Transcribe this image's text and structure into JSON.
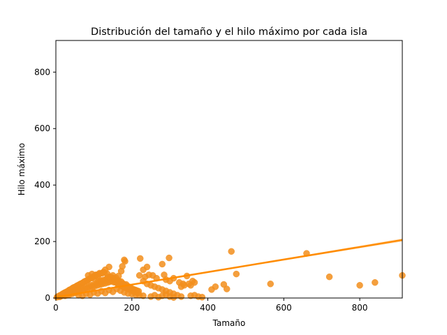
{
  "chart_data": {
    "type": "scatter",
    "title": "Distribución del tamaño y el hilo máximo por cada isla",
    "xlabel": "Tamaño",
    "ylabel": "Hilo máximo",
    "xlim": [
      0,
      912
    ],
    "ylim": [
      0,
      912
    ],
    "x_ticks": [
      0,
      200,
      400,
      600,
      800
    ],
    "y_ticks": [
      0,
      200,
      400,
      600,
      800
    ],
    "grid": false,
    "legend": "none",
    "colors": {
      "points": "#f28e1c",
      "regression": "#ff8c00",
      "confidence_band": "#ffd7a8"
    },
    "regression": {
      "intercept": 3,
      "slope": 0.222,
      "ci_halfwidth_at_max": 6
    },
    "points": [
      [
        3,
        3
      ],
      [
        5,
        5
      ],
      [
        7,
        6
      ],
      [
        9,
        8
      ],
      [
        10,
        4
      ],
      [
        12,
        10
      ],
      [
        14,
        7
      ],
      [
        15,
        12
      ],
      [
        17,
        9
      ],
      [
        18,
        15
      ],
      [
        20,
        11
      ],
      [
        22,
        18
      ],
      [
        24,
        8
      ],
      [
        25,
        20
      ],
      [
        27,
        14
      ],
      [
        28,
        22
      ],
      [
        30,
        10
      ],
      [
        32,
        25
      ],
      [
        33,
        17
      ],
      [
        35,
        28
      ],
      [
        36,
        12
      ],
      [
        38,
        30
      ],
      [
        40,
        20
      ],
      [
        42,
        33
      ],
      [
        43,
        15
      ],
      [
        45,
        36
      ],
      [
        47,
        24
      ],
      [
        48,
        38
      ],
      [
        50,
        18
      ],
      [
        52,
        40
      ],
      [
        53,
        27
      ],
      [
        55,
        43
      ],
      [
        57,
        21
      ],
      [
        58,
        45
      ],
      [
        60,
        30
      ],
      [
        62,
        48
      ],
      [
        63,
        24
      ],
      [
        65,
        50
      ],
      [
        67,
        33
      ],
      [
        68,
        52
      ],
      [
        70,
        27
      ],
      [
        72,
        55
      ],
      [
        73,
        36
      ],
      [
        75,
        58
      ],
      [
        77,
        30
      ],
      [
        78,
        60
      ],
      [
        80,
        39
      ],
      [
        82,
        62
      ],
      [
        83,
        33
      ],
      [
        85,
        65
      ],
      [
        87,
        42
      ],
      [
        88,
        68
      ],
      [
        90,
        36
      ],
      [
        92,
        70
      ],
      [
        93,
        45
      ],
      [
        95,
        72
      ],
      [
        97,
        39
      ],
      [
        98,
        75
      ],
      [
        100,
        48
      ],
      [
        102,
        78
      ],
      [
        103,
        42
      ],
      [
        105,
        80
      ],
      [
        107,
        51
      ],
      [
        108,
        82
      ],
      [
        110,
        45
      ],
      [
        112,
        60
      ],
      [
        113,
        54
      ],
      [
        115,
        85
      ],
      [
        117,
        48
      ],
      [
        118,
        62
      ],
      [
        120,
        57
      ],
      [
        122,
        88
      ],
      [
        123,
        50
      ],
      [
        125,
        64
      ],
      [
        127,
        60
      ],
      [
        128,
        90
      ],
      [
        130,
        52
      ],
      [
        132,
        66
      ],
      [
        133,
        62
      ],
      [
        135,
        70
      ],
      [
        137,
        55
      ],
      [
        138,
        68
      ],
      [
        140,
        64
      ],
      [
        142,
        72
      ],
      [
        143,
        58
      ],
      [
        145,
        74
      ],
      [
        147,
        66
      ],
      [
        148,
        62
      ],
      [
        150,
        60
      ],
      [
        152,
        70
      ],
      [
        153,
        56
      ],
      [
        155,
        65
      ],
      [
        157,
        58
      ],
      [
        158,
        72
      ],
      [
        160,
        54
      ],
      [
        162,
        60
      ],
      [
        163,
        50
      ],
      [
        165,
        62
      ],
      [
        167,
        48
      ],
      [
        168,
        56
      ],
      [
        170,
        45
      ],
      [
        172,
        58
      ],
      [
        173,
        42
      ],
      [
        175,
        52
      ],
      [
        177,
        40
      ],
      [
        178,
        50
      ],
      [
        180,
        38
      ],
      [
        182,
        45
      ],
      [
        183,
        36
      ],
      [
        185,
        48
      ],
      [
        187,
        34
      ],
      [
        188,
        42
      ],
      [
        190,
        32
      ],
      [
        192,
        40
      ],
      [
        193,
        30
      ],
      [
        195,
        38
      ],
      [
        197,
        28
      ],
      [
        198,
        35
      ],
      [
        200,
        26
      ],
      [
        202,
        32
      ],
      [
        204,
        24
      ],
      [
        206,
        30
      ],
      [
        208,
        22
      ],
      [
        210,
        28
      ],
      [
        212,
        20
      ],
      [
        214,
        26
      ],
      [
        216,
        18
      ],
      [
        218,
        24
      ],
      [
        60,
        10
      ],
      [
        70,
        8
      ],
      [
        80,
        15
      ],
      [
        90,
        12
      ],
      [
        100,
        20
      ],
      [
        110,
        16
      ],
      [
        120,
        24
      ],
      [
        130,
        18
      ],
      [
        140,
        28
      ],
      [
        150,
        22
      ],
      [
        160,
        32
      ],
      [
        170,
        26
      ],
      [
        180,
        20
      ],
      [
        190,
        16
      ],
      [
        200,
        14
      ],
      [
        210,
        12
      ],
      [
        220,
        10
      ],
      [
        230,
        8
      ],
      [
        85,
        80
      ],
      [
        95,
        85
      ],
      [
        105,
        82
      ],
      [
        115,
        88
      ],
      [
        125,
        92
      ],
      [
        135,
        86
      ],
      [
        100,
        70
      ],
      [
        110,
        76
      ],
      [
        140,
        75
      ],
      [
        150,
        80
      ],
      [
        165,
        78
      ],
      [
        172,
        95
      ],
      [
        130,
        100
      ],
      [
        140,
        110
      ],
      [
        175,
        112
      ],
      [
        182,
        130
      ],
      [
        180,
        135
      ],
      [
        222,
        140
      ],
      [
        230,
        100
      ],
      [
        240,
        110
      ],
      [
        280,
        120
      ],
      [
        298,
        142
      ],
      [
        220,
        80
      ],
      [
        235,
        75
      ],
      [
        245,
        82
      ],
      [
        255,
        80
      ],
      [
        265,
        70
      ],
      [
        285,
        82
      ],
      [
        290,
        65
      ],
      [
        300,
        60
      ],
      [
        310,
        70
      ],
      [
        325,
        55
      ],
      [
        345,
        78
      ],
      [
        355,
        45
      ],
      [
        360,
        60
      ],
      [
        365,
        55
      ],
      [
        230,
        60
      ],
      [
        240,
        50
      ],
      [
        250,
        45
      ],
      [
        260,
        40
      ],
      [
        270,
        35
      ],
      [
        280,
        30
      ],
      [
        290,
        25
      ],
      [
        300,
        20
      ],
      [
        310,
        15
      ],
      [
        320,
        10
      ],
      [
        330,
        40
      ],
      [
        335,
        50
      ],
      [
        338,
        45
      ],
      [
        350,
        50
      ],
      [
        250,
        5
      ],
      [
        260,
        10
      ],
      [
        270,
        3
      ],
      [
        280,
        8
      ],
      [
        290,
        12
      ],
      [
        300,
        5
      ],
      [
        310,
        2
      ],
      [
        330,
        5
      ],
      [
        355,
        8
      ],
      [
        365,
        10
      ],
      [
        375,
        5
      ],
      [
        385,
        3
      ],
      [
        410,
        30
      ],
      [
        420,
        40
      ],
      [
        442,
        48
      ],
      [
        450,
        32
      ],
      [
        462,
        165
      ],
      [
        475,
        85
      ],
      [
        565,
        50
      ],
      [
        660,
        158
      ],
      [
        720,
        75
      ],
      [
        800,
        45
      ],
      [
        840,
        55
      ],
      [
        912,
        80
      ]
    ]
  }
}
